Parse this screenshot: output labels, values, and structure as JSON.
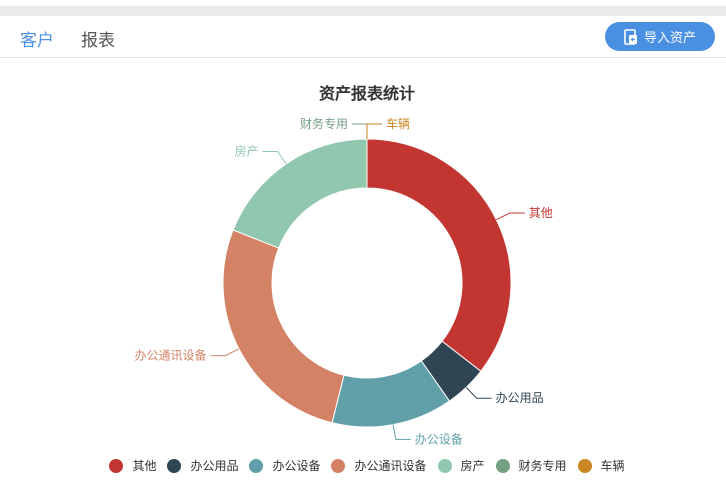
{
  "header": {
    "tabs": [
      {
        "label": "客户",
        "active": true
      },
      {
        "label": "报表",
        "active": false
      }
    ],
    "import_button": {
      "label": "导入资产",
      "icon": "import-icon"
    }
  },
  "colors": {
    "accent": "#4a90e2"
  },
  "chart_data": {
    "type": "pie",
    "variant": "donut",
    "title": "资产报表统计",
    "legend_position": "bottom",
    "categories": [
      "其他",
      "办公用品",
      "办公设备",
      "办公通讯设备",
      "房产",
      "财务专用",
      "车辆"
    ],
    "values": [
      35.5,
      4.8,
      13.6,
      27.1,
      19.0,
      0,
      0
    ],
    "colors": [
      "#c23531",
      "#2f4554",
      "#61a0a8",
      "#d48265",
      "#91c7ae",
      "#749f83",
      "#ca8622"
    ]
  }
}
